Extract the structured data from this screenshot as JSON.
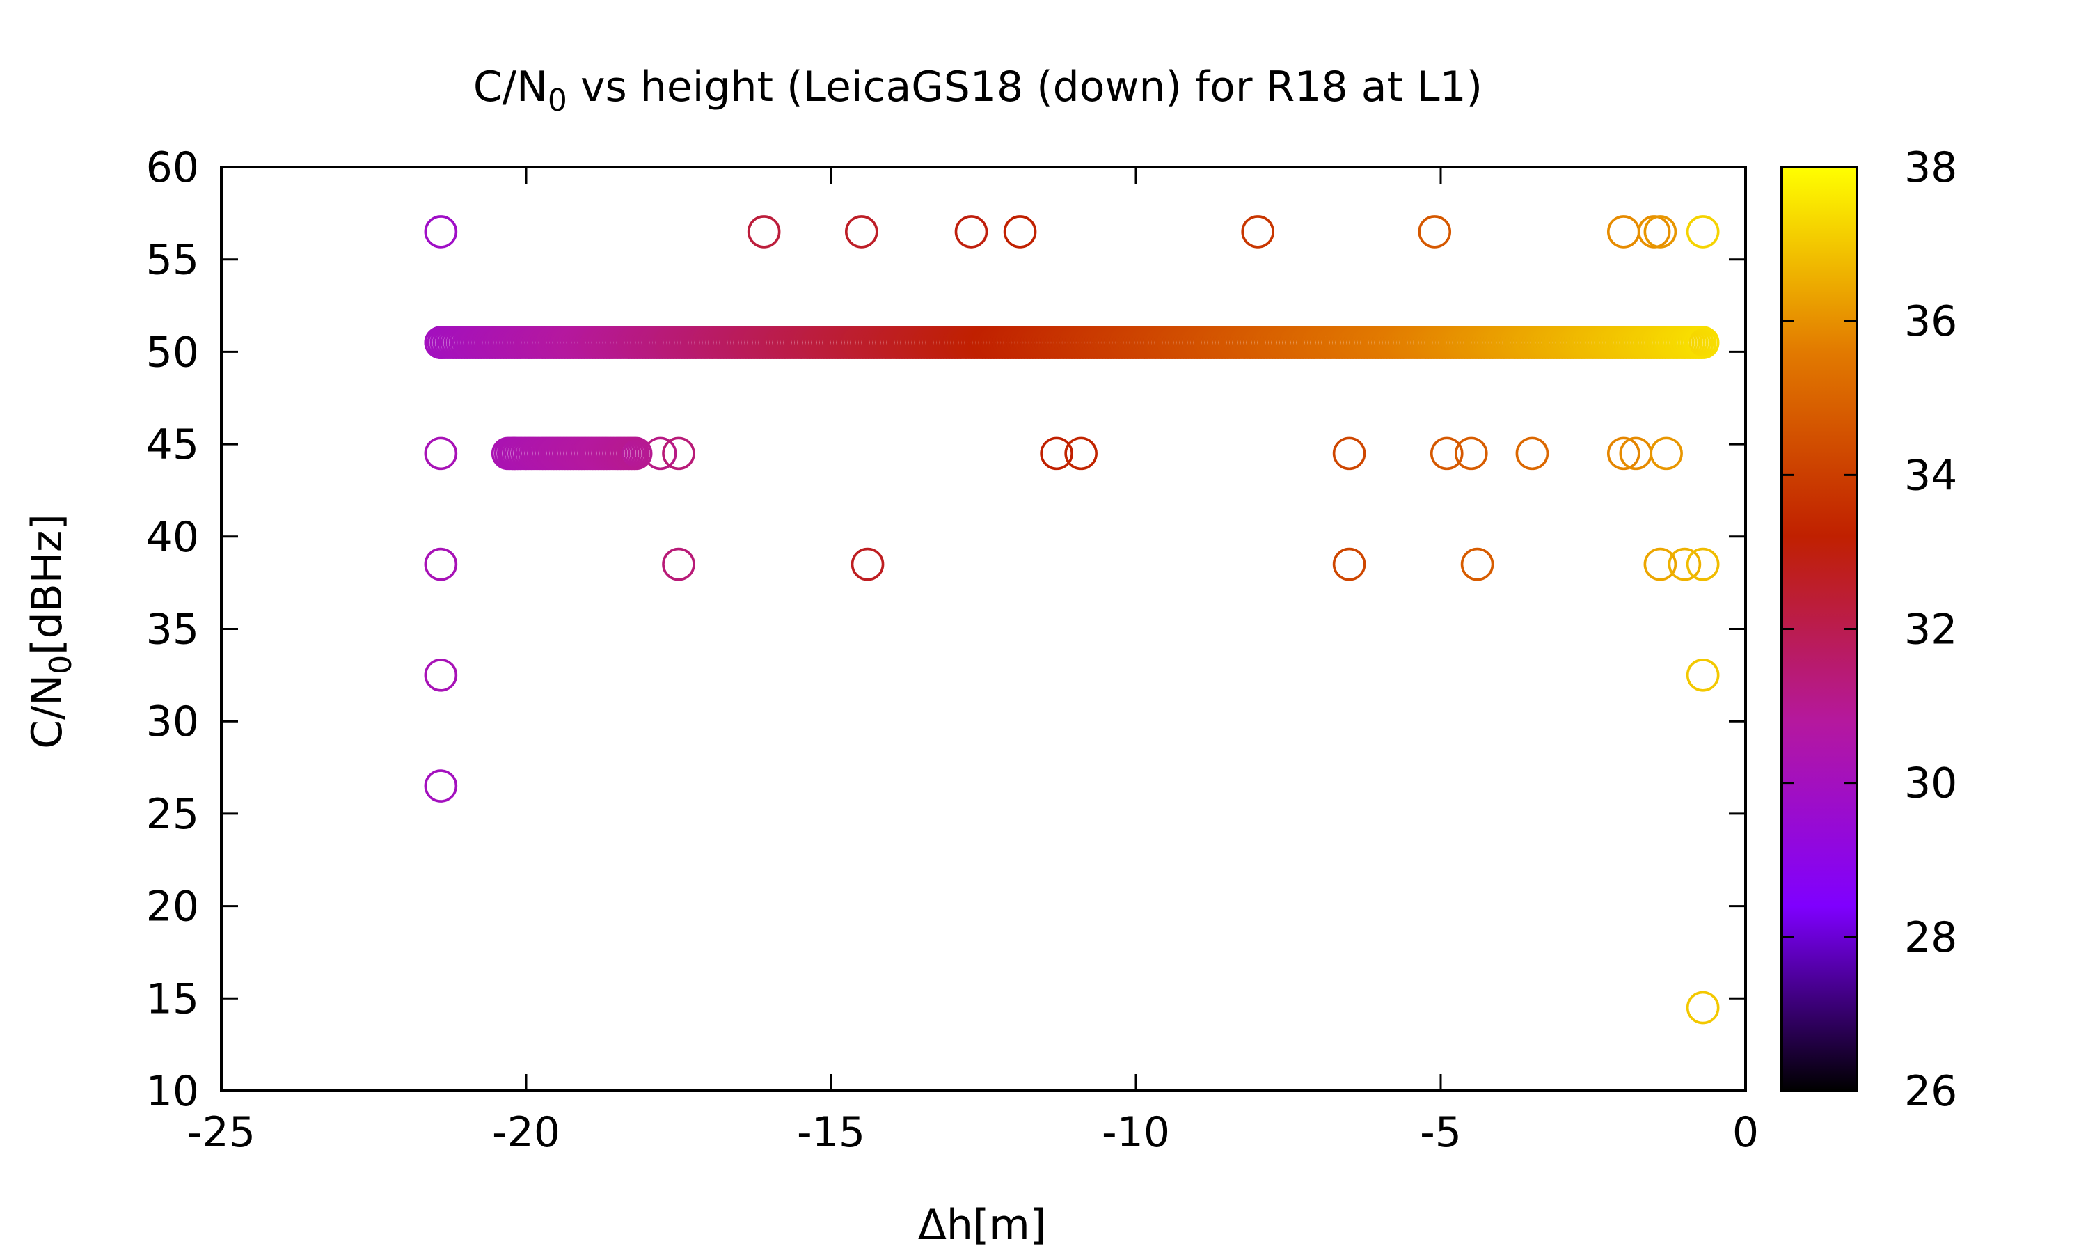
{
  "chart_data": {
    "type": "scatter",
    "title": {
      "main": "C/N",
      "sub": "0",
      "rest": " vs height (LeicaGS18 (down) for R18 at L1)"
    },
    "xlabel": "Δh[m]",
    "ylabel": {
      "main": "C/N",
      "sub": "0",
      "rest": "[dBHz]"
    },
    "xlim": [
      -25,
      0
    ],
    "ylim": [
      10,
      60
    ],
    "xticks": [
      -25,
      -20,
      -15,
      -10,
      -5,
      0
    ],
    "xtick_labels": [
      "-25",
      "-20",
      "-15",
      "-10",
      "-5",
      "0"
    ],
    "yticks": [
      10,
      15,
      20,
      25,
      30,
      35,
      40,
      45,
      50,
      55,
      60
    ],
    "ytick_labels": [
      "10",
      "15",
      "20",
      "25",
      "30",
      "35",
      "40",
      "45",
      "50",
      "55",
      "60"
    ],
    "colorbar": {
      "range": [
        26,
        38
      ],
      "ticks": [
        26,
        28,
        30,
        32,
        34,
        36,
        38
      ],
      "tick_labels": [
        "26",
        "28",
        "30",
        "32",
        "34",
        "36",
        "38"
      ],
      "palette": [
        "#000000",
        "#7f00ff",
        "#b5189e",
        "#c02000",
        "#e27a00",
        "#ffff00"
      ]
    },
    "marker": "open-circle",
    "series": [
      {
        "x": [
          -21.4,
          -21.4,
          -21.4,
          -21.4,
          -21.4,
          -21.4,
          -16.1,
          -14.5,
          -12.7,
          -11.9,
          -8.0,
          -5.1,
          -2.0,
          -1.5,
          -1.4,
          -0.7,
          -20.2,
          -17.8,
          -17.5,
          -11.3,
          -10.9,
          -6.5,
          -4.9,
          -4.5,
          -3.5,
          -2.0,
          -1.8,
          -1.3,
          -17.5,
          -14.4,
          -6.5,
          -4.4,
          -1.4,
          -1.0,
          -0.7,
          -0.7,
          -0.7
        ],
        "y": [
          56.5,
          44.5,
          38.5,
          32.5,
          26.5,
          50.5,
          56.5,
          56.5,
          56.5,
          56.5,
          56.5,
          56.5,
          56.5,
          56.5,
          56.5,
          56.5,
          44.5,
          44.5,
          44.5,
          44.5,
          44.5,
          44.5,
          44.5,
          44.5,
          44.5,
          44.5,
          44.5,
          44.5,
          38.5,
          38.5,
          38.5,
          38.5,
          38.5,
          38.5,
          38.5,
          32.5,
          14.5
        ],
        "c": [
          29.8,
          30.2,
          30.2,
          30.2,
          30.0,
          30.0,
          32.3,
          32.6,
          33.0,
          33.2,
          33.8,
          34.7,
          35.9,
          36.0,
          36.1,
          37.2,
          30.6,
          31.2,
          31.4,
          33.2,
          33.3,
          34.2,
          34.7,
          34.8,
          35.1,
          35.8,
          35.9,
          36.1,
          31.4,
          32.7,
          34.2,
          34.8,
          36.4,
          36.6,
          36.8,
          37.0,
          37.0
        ]
      },
      {
        "type": "dense-band",
        "x_range": [
          -21.4,
          -0.7
        ],
        "y": 50.5,
        "c_range": [
          30.0,
          37.4
        ]
      },
      {
        "type": "dense-band",
        "x_range": [
          -20.3,
          -18.2
        ],
        "y": 44.5,
        "c_range": [
          30.3,
          31.0
        ]
      }
    ]
  }
}
